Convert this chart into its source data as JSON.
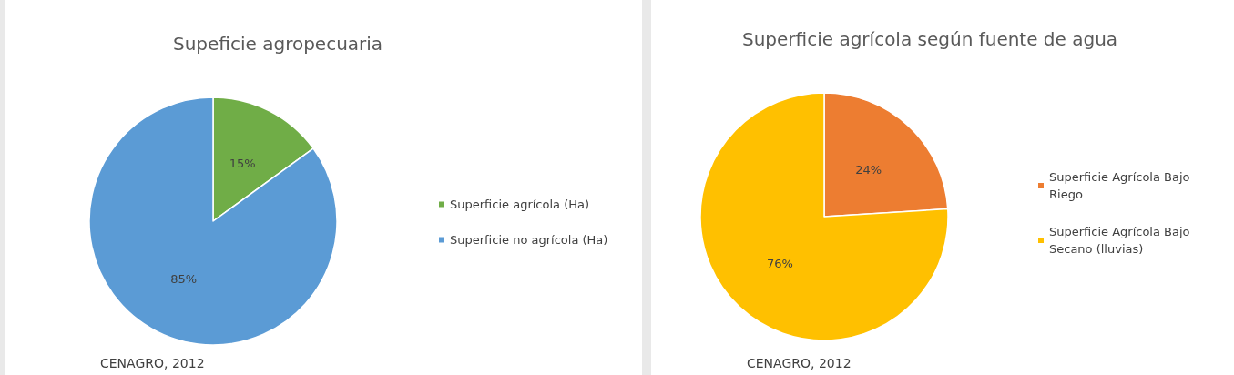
{
  "chart_data": [
    {
      "type": "pie",
      "title": "Supeficie agropecuaria",
      "categories": [
        "Superficie agrícola (Ha)",
        "Superficie no agrícola (Ha)"
      ],
      "values": [
        15,
        85
      ],
      "colors": [
        "#70ad47",
        "#5b9bd5"
      ],
      "value_labels": [
        "15%",
        "85%"
      ],
      "legend": "right",
      "annotations": [
        "CENAGRO, 2012"
      ]
    },
    {
      "type": "pie",
      "title": "Superficie agrícola según fuente de agua",
      "categories": [
        "Superficie Agrícola Bajo Riego",
        "Superficie Agrícola Bajo Secano (lluvias)"
      ],
      "values": [
        24,
        76
      ],
      "colors": [
        "#ed7d31",
        "#ffc000"
      ],
      "value_labels": [
        "24%",
        "76%"
      ],
      "legend": "right",
      "annotations": [
        "CENAGRO, 2012"
      ]
    }
  ]
}
